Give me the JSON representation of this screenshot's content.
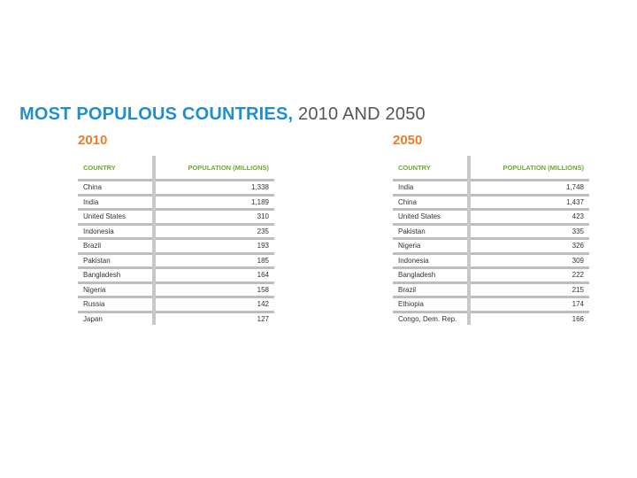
{
  "title": {
    "bold": "MOST POPULOUS COUNTRIES,",
    "light": " 2010 AND 2050"
  },
  "colors": {
    "title": "#1f8fcf",
    "year": "#ef7a2a",
    "header": "#6aac2f",
    "rule": "#bdbdbd"
  },
  "chart_data": [
    {
      "type": "table",
      "title": "2010",
      "columns": [
        "COUNTRY",
        "POPULATION (MILLIONS)"
      ],
      "rows": [
        {
          "country": "China",
          "population": "1,338"
        },
        {
          "country": "India",
          "population": "1,189"
        },
        {
          "country": "United States",
          "population": "310"
        },
        {
          "country": "Indonesia",
          "population": "235"
        },
        {
          "country": "Brazil",
          "population": "193"
        },
        {
          "country": "Pakistan",
          "population": "185"
        },
        {
          "country": "Bangladesh",
          "population": "164"
        },
        {
          "country": "Nigeria",
          "population": "158"
        },
        {
          "country": "Russia",
          "population": "142"
        },
        {
          "country": "Japan",
          "population": "127"
        }
      ]
    },
    {
      "type": "table",
      "title": "2050",
      "columns": [
        "COUNTRY",
        "POPULATION (MILLIONS)"
      ],
      "rows": [
        {
          "country": "India",
          "population": "1,748"
        },
        {
          "country": "China",
          "population": "1,437"
        },
        {
          "country": "United States",
          "population": "423"
        },
        {
          "country": "Pakistan",
          "population": "335"
        },
        {
          "country": "Nigeria",
          "population": "326"
        },
        {
          "country": "Indonesia",
          "population": "309"
        },
        {
          "country": "Bangladesh",
          "population": "222"
        },
        {
          "country": "Brazil",
          "population": "215"
        },
        {
          "country": "Ethiopia",
          "population": "174"
        },
        {
          "country": "Congo, Dem. Rep.",
          "population": "166"
        }
      ]
    }
  ]
}
